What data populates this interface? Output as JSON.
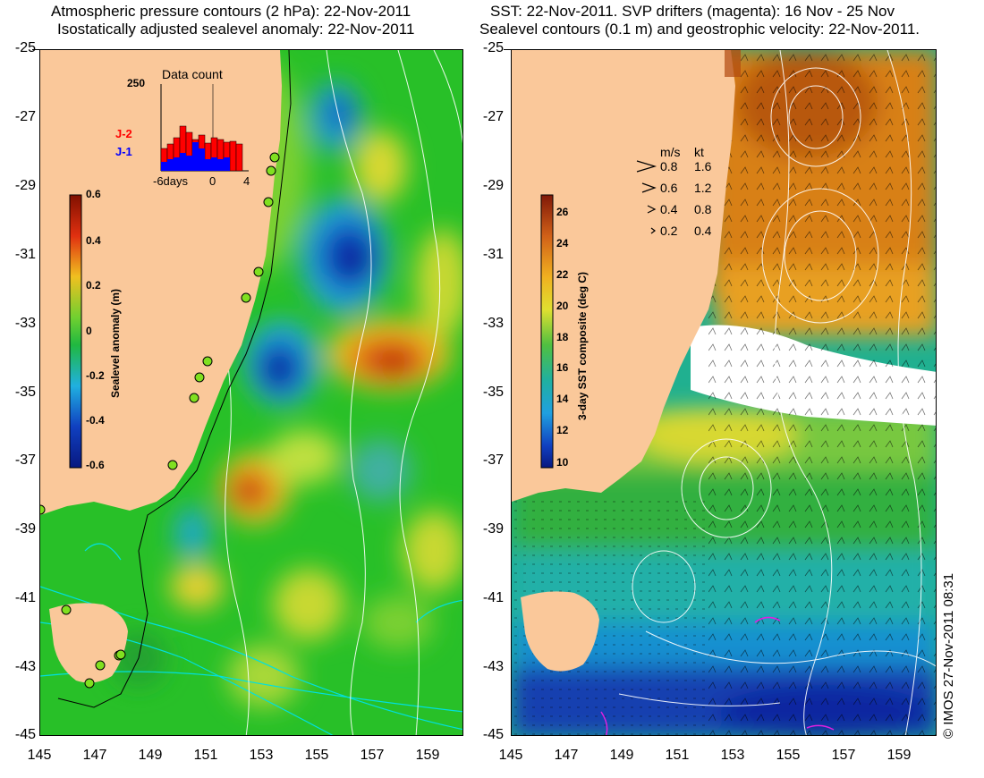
{
  "left_panel": {
    "title_line1": "Atmospheric pressure contours (2 hPa): 22-Nov-2011",
    "title_line2": "Isostatically adjusted sealevel anomaly: 22-Nov-2011",
    "colorbar": {
      "label": "Sealevel anomaly (m)",
      "ticks": [
        "0.6",
        "0.4",
        "0.2",
        "0",
        "-0.2",
        "-0.4",
        "-0.6"
      ],
      "range": [
        -0.6,
        0.6
      ]
    },
    "inset": {
      "title": "Data count",
      "ymax_label": "250",
      "series": [
        {
          "name": "J-2",
          "color": "#ff0000"
        },
        {
          "name": "J-1",
          "color": "#0000ff"
        }
      ],
      "x_ticks": [
        "-6days",
        "0",
        "4"
      ]
    }
  },
  "right_panel": {
    "title_line1": "SST: 22-Nov-2011. SVP drifters (magenta): 16 Nov - 25 Nov",
    "title_line2": "Sealevel contours (0.1 m) and geostrophic velocity: 22-Nov-2011.",
    "colorbar": {
      "label": "3-day SST composite (deg C)",
      "ticks": [
        "26",
        "24",
        "22",
        "20",
        "18",
        "16",
        "14",
        "12",
        "10"
      ],
      "range": [
        9.5,
        27
      ]
    },
    "velocity_legend": {
      "header_ms": "m/s",
      "header_kt": "kt",
      "rows": [
        {
          "ms": "0.8",
          "kt": "1.6"
        },
        {
          "ms": "0.6",
          "kt": "1.2"
        },
        {
          "ms": "0.4",
          "kt": "0.8"
        },
        {
          "ms": "0.2",
          "kt": "0.4"
        }
      ]
    }
  },
  "axes": {
    "lat_labels": [
      "-25",
      "-27",
      "-29",
      "-31",
      "-33",
      "-35",
      "-37",
      "-39",
      "-41",
      "-43",
      "-45"
    ],
    "lon_labels": [
      "145",
      "147",
      "149",
      "151",
      "153",
      "155",
      "157",
      "159"
    ]
  },
  "copyright": "© IMOS 27-Nov-2011 08:31",
  "colors": {
    "land": "#fac89a",
    "ocean_green": "#22c022",
    "ssh_high": "#c82800",
    "ssh_low": "#1030b0",
    "sst_warm": "#d88018",
    "sst_cold": "#1838a8",
    "cloud": "#ffffff",
    "contour": "#ffffff",
    "pressure": "#00e0e0"
  }
}
